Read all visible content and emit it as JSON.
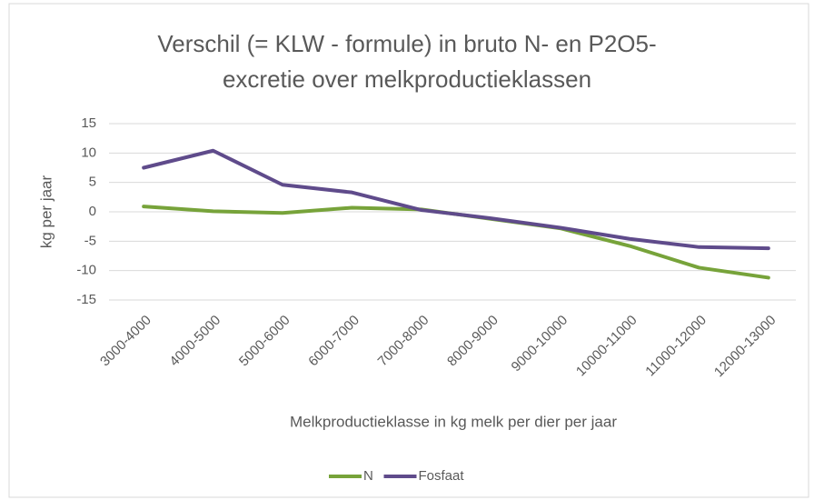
{
  "chart_data": {
    "type": "line",
    "title": [
      "Verschil (= KLW - formule) in bruto N- en P2O5-",
      "excretie  over melkproductieklassen"
    ],
    "x_label": "Melkproductieklasse in kg melk per dier per jaar",
    "y_label": "kg per jaar",
    "categories": [
      "3000-4000",
      "4000-5000",
      "5000-6000",
      "6000-7000",
      "7000-8000",
      "8000-9000",
      "9000-10000",
      "10000-11000",
      "11000-12000",
      "12000-13000"
    ],
    "series": [
      {
        "name": "N",
        "color": "#77a33a",
        "values": [
          0.9,
          0.1,
          -0.2,
          0.7,
          0.4,
          -1.2,
          -2.8,
          -5.8,
          -9.5,
          -11.2
        ]
      },
      {
        "name": "Fosfaat",
        "color": "#5f4b8b",
        "values": [
          7.5,
          10.4,
          4.6,
          3.3,
          0.3,
          -1.1,
          -2.7,
          -4.6,
          -6.0,
          -6.2
        ]
      }
    ],
    "ylim": [
      -15,
      15
    ],
    "yticks": [
      -15,
      -10,
      -5,
      0,
      5,
      10,
      15
    ],
    "grid": true,
    "legend": "bottom"
  }
}
